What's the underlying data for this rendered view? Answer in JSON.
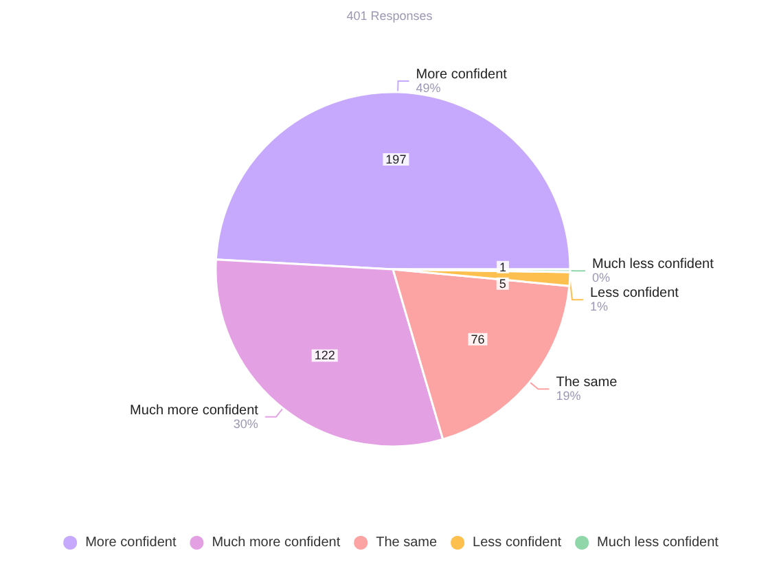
{
  "chart_data": {
    "type": "pie",
    "title": "401 Responses",
    "categories": [
      "More confident",
      "Much more confident",
      "The same",
      "Less confident",
      "Much less confident"
    ],
    "values": [
      197,
      122,
      76,
      5,
      1
    ],
    "colors": [
      "#c6a9fc",
      "#e3a1e3",
      "#fca3a3",
      "#fdc04e",
      "#8fd6a8"
    ],
    "annotations": [
      "49%",
      "30%",
      "19%",
      "1%",
      "0%"
    ],
    "data_labels": true,
    "legend": "bottom"
  }
}
